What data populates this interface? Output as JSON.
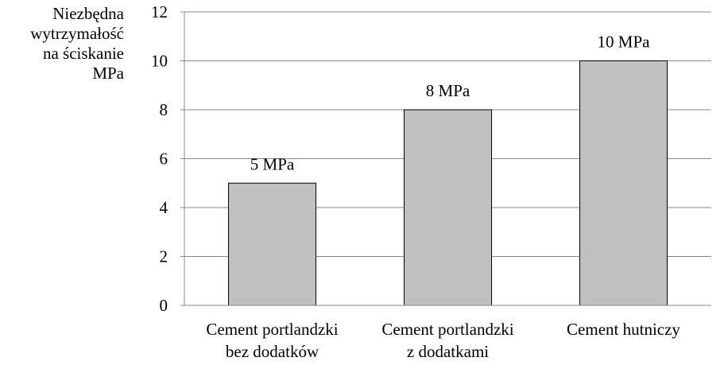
{
  "chart_data": {
    "type": "bar",
    "title": "",
    "ylabel_lines": [
      "Niezbędna",
      "wytrzymałość",
      "na ściskanie",
      "MPa"
    ],
    "xlabel": "",
    "ylim": [
      0,
      12
    ],
    "yticks": [
      0,
      2,
      4,
      6,
      8,
      10,
      12
    ],
    "grid": true,
    "legend": "none",
    "categories": [
      [
        "Cement portlandzki",
        "bez dodatków"
      ],
      [
        "Cement portlandzki",
        "z dodatkami"
      ],
      [
        "Cement hutniczy"
      ]
    ],
    "values": [
      5,
      8,
      10
    ],
    "data_labels": [
      "5 MPa",
      "8 MPa",
      "10 MPa"
    ],
    "colors": {
      "bar_fill": "#c0c0c0",
      "bar_stroke": "#000000",
      "grid": "#888888",
      "axis": "#000000"
    }
  }
}
